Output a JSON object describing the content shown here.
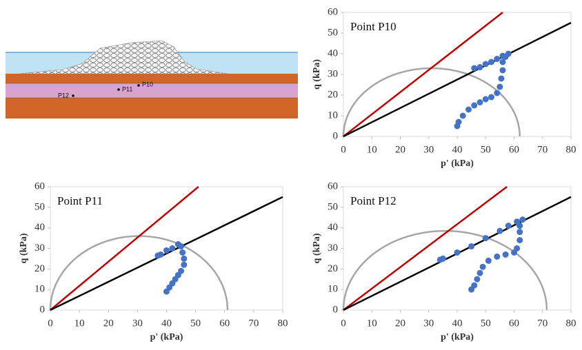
{
  "diagram": {
    "labels": [
      "P10",
      "P11",
      "P12"
    ]
  },
  "chart_data": [
    {
      "type": "scatter",
      "title": "Point P10",
      "x_label": "p' (kPa)",
      "y_label": "q (kPa)",
      "xlim": [
        0,
        80
      ],
      "ylim": [
        0,
        60
      ],
      "xticks": [
        0,
        10,
        20,
        30,
        40,
        50,
        60,
        70,
        80
      ],
      "yticks": [
        0,
        10,
        20,
        30,
        40,
        50,
        60
      ],
      "arc": {
        "x": [
          0,
          62
        ],
        "height": 33,
        "color": "#a6a6a6"
      },
      "series": [
        {
          "style": "line",
          "color": "#c00000",
          "x": [
            0,
            56
          ],
          "values": [
            0,
            60
          ]
        },
        {
          "style": "line",
          "color": "#000000",
          "x": [
            0,
            80
          ],
          "values": [
            0,
            55
          ]
        },
        {
          "style": "markers",
          "color": "#4472c4",
          "x": [
            40,
            40.5,
            42,
            44,
            46,
            48,
            50,
            52,
            54,
            55,
            55.5,
            56,
            56,
            57,
            58,
            56,
            54,
            52,
            50,
            48,
            46
          ],
          "values": [
            5,
            7,
            10,
            13,
            15,
            16.5,
            18,
            19,
            21,
            24,
            28,
            32,
            36,
            38.5,
            40,
            39,
            37.5,
            36,
            35,
            33.5,
            33
          ]
        }
      ]
    },
    {
      "type": "scatter",
      "title": "Point P11",
      "x_label": "p' (kPa)",
      "y_label": "q (kPa)",
      "xlim": [
        0,
        80
      ],
      "ylim": [
        0,
        60
      ],
      "xticks": [
        0,
        10,
        20,
        30,
        40,
        50,
        60,
        70,
        80
      ],
      "yticks": [
        0,
        10,
        20,
        30,
        40,
        50,
        60
      ],
      "arc": {
        "x": [
          0,
          61
        ],
        "height": 36,
        "color": "#a6a6a6"
      },
      "series": [
        {
          "style": "line",
          "color": "#c00000",
          "x": [
            0,
            51
          ],
          "values": [
            0,
            60
          ]
        },
        {
          "style": "line",
          "color": "#000000",
          "x": [
            0,
            80
          ],
          "values": [
            0,
            55
          ]
        },
        {
          "style": "markers",
          "color": "#4472c4",
          "x": [
            40,
            41,
            42,
            43,
            44,
            45,
            46,
            46,
            45.5,
            45,
            44,
            42,
            40,
            38,
            37
          ],
          "values": [
            9,
            11,
            13,
            15,
            17,
            19,
            22,
            25,
            28,
            31,
            32,
            30,
            29,
            27,
            26.5
          ]
        }
      ]
    },
    {
      "type": "scatter",
      "title": "Point P12",
      "x_label": "p' (kPa)",
      "y_label": "q (kPa)",
      "xlim": [
        0,
        80
      ],
      "ylim": [
        0,
        60
      ],
      "xticks": [
        0,
        10,
        20,
        30,
        40,
        50,
        60,
        70,
        80
      ],
      "yticks": [
        0,
        10,
        20,
        30,
        40,
        50,
        60
      ],
      "arc": {
        "x": [
          0,
          71.5
        ],
        "height": 38.5,
        "color": "#a6a6a6"
      },
      "series": [
        {
          "style": "line",
          "color": "#c00000",
          "x": [
            0,
            57.5
          ],
          "values": [
            0,
            60
          ]
        },
        {
          "style": "line",
          "color": "#000000",
          "x": [
            0,
            80
          ],
          "values": [
            0,
            55
          ]
        },
        {
          "style": "markers",
          "color": "#4472c4",
          "x": [
            45,
            46,
            47,
            48,
            49,
            51,
            54,
            57,
            60,
            61,
            62,
            62,
            62,
            63,
            61,
            58,
            55,
            50,
            45,
            40,
            35,
            34
          ],
          "values": [
            10,
            12,
            15,
            18,
            21,
            24,
            26,
            27,
            28,
            30,
            34,
            38,
            41,
            44,
            43,
            41,
            38.5,
            35,
            31,
            28,
            25,
            24.5
          ]
        }
      ]
    }
  ]
}
